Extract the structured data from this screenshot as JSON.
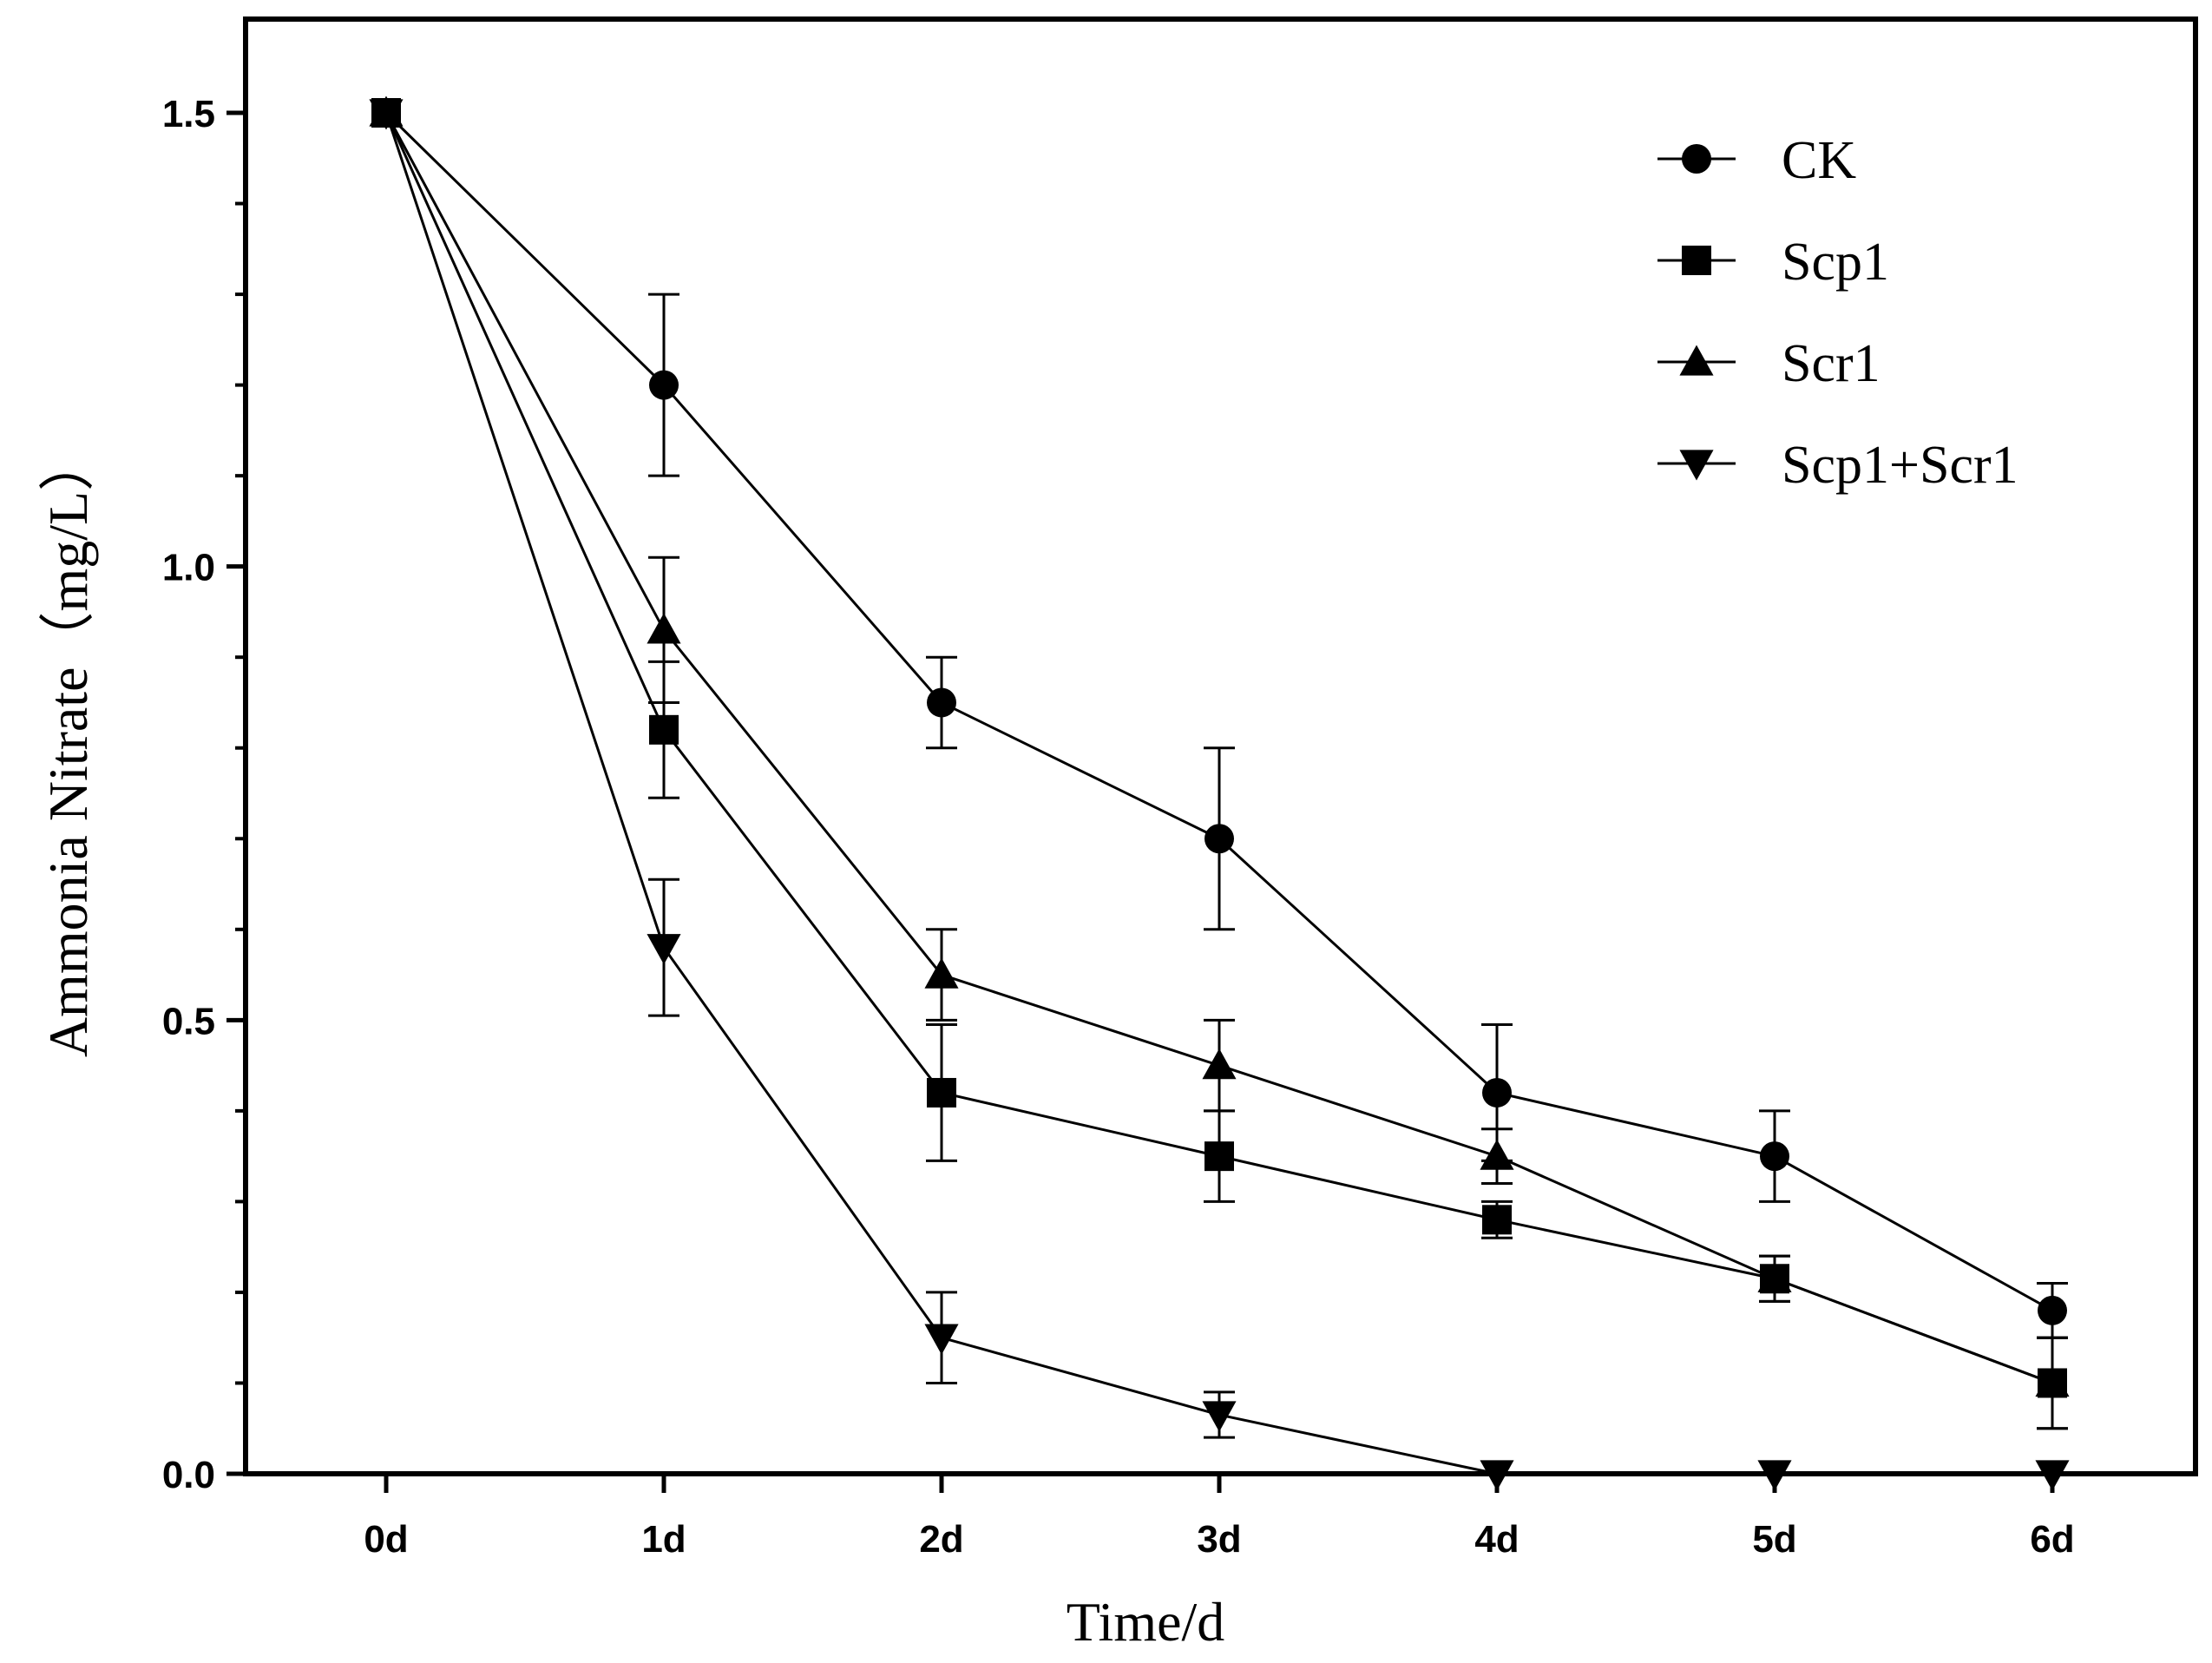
{
  "chart_data": {
    "type": "line",
    "title": "",
    "xlabel": "Time/d",
    "ylabel": "Ammonia Nitrate（mg/L）",
    "categories": [
      "0d",
      "1d",
      "2d",
      "3d",
      "4d",
      "5d",
      "6d"
    ],
    "ylim": [
      0,
      1.6
    ],
    "yticks": [
      0.0,
      0.5,
      1.0,
      1.5
    ],
    "ytick_labels": [
      "0.0",
      "0.5",
      "1.0",
      "1.5"
    ],
    "grid": false,
    "legend_position": "top-right",
    "series": [
      {
        "name": "CK",
        "marker": "circle",
        "values": [
          1.5,
          1.2,
          0.85,
          0.7,
          0.42,
          0.35,
          0.18
        ],
        "errors": [
          0,
          0.1,
          0.05,
          0.1,
          0.075,
          0.05,
          0.03
        ]
      },
      {
        "name": "Scp1",
        "marker": "square",
        "values": [
          1.5,
          0.82,
          0.42,
          0.35,
          0.28,
          0.215,
          0.1
        ],
        "errors": [
          0,
          0.075,
          0.075,
          0.05,
          0.02,
          0.025,
          0.05
        ]
      },
      {
        "name": "Scr1",
        "marker": "triangle-up",
        "values": [
          1.5,
          0.93,
          0.55,
          0.45,
          0.35,
          0.215,
          0.1
        ],
        "errors": [
          0,
          0.08,
          0.05,
          0.05,
          0.03,
          0.025,
          0.05
        ]
      },
      {
        "name": "Scp1+Scr1",
        "marker": "triangle-down",
        "values": [
          1.5,
          0.58,
          0.15,
          0.065,
          0.0,
          0.0,
          0.0
        ],
        "errors": [
          0,
          0.075,
          0.05,
          0.025,
          0,
          0,
          0
        ]
      }
    ]
  }
}
